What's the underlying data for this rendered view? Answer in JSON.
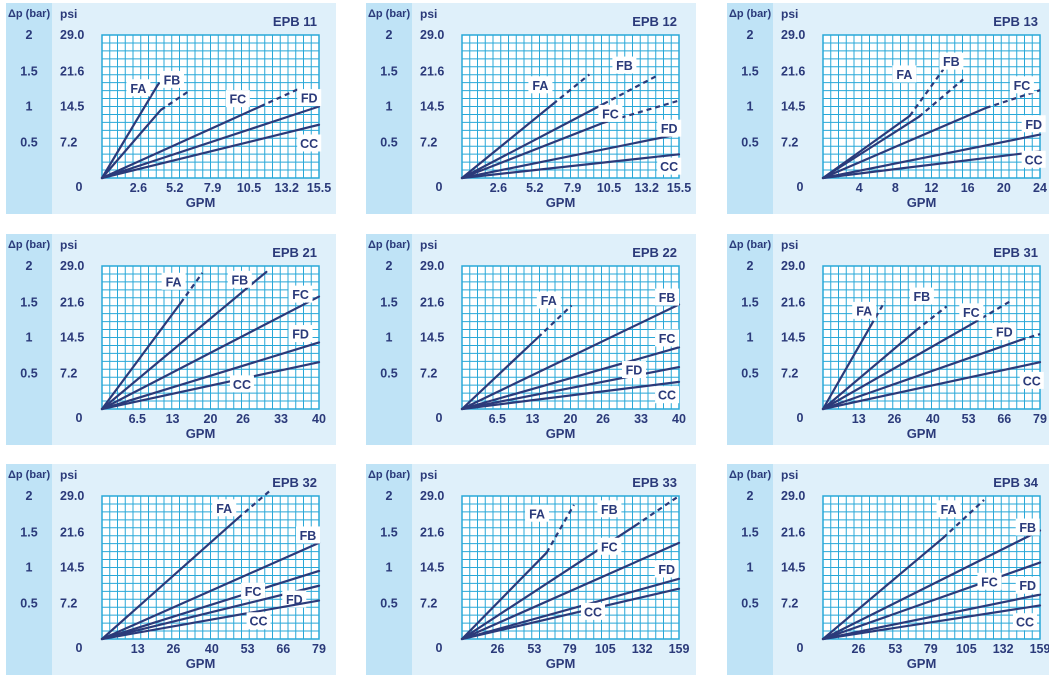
{
  "style": {
    "strip": "#bfe3f6",
    "panel_bg": "#dff0fa",
    "plot_bg": "#ffffff",
    "grid": "#29a8d8",
    "line": "#2b3a7a",
    "text": "#2b3a7a"
  },
  "chart_data": [
    {
      "type": "line",
      "title": "EPB 11",
      "xlabel": "GPM",
      "ylabel": "psi",
      "y2label": "Δp (bar)",
      "xlim": [
        0,
        15.5
      ],
      "ylim": [
        0,
        29.0
      ],
      "x_ticks": [
        "2.6",
        "5.2",
        "7.9",
        "10.5",
        "13.2",
        "15.5"
      ],
      "x_tick_values": [
        2.6,
        5.2,
        7.9,
        10.5,
        13.2,
        15.5
      ],
      "y_ticks": [
        "29.0",
        "21.6",
        "14.5",
        "7.2"
      ],
      "y_tick_values": [
        29.0,
        21.6,
        14.5,
        7.2
      ],
      "bar_ticks": [
        "2",
        "1.5",
        "1",
        "0.5",
        "0"
      ],
      "bar_tick_values": [
        29.0,
        21.6,
        14.5,
        7.2,
        0
      ],
      "series": [
        {
          "name": "FA",
          "solid_to": [
            3.9,
            18.5
          ],
          "dashed_to": [
            4.5,
            21.0
          ],
          "label_at": [
            2.6,
            18.2
          ]
        },
        {
          "name": "FB",
          "solid_to": [
            4.2,
            13.8
          ],
          "dashed_to": [
            6.3,
            17.8
          ],
          "label_at": [
            5.0,
            19.9
          ]
        },
        {
          "name": "FC",
          "solid_to": [
            11.3,
            14.5
          ],
          "dashed_to": [
            14.0,
            18.0
          ],
          "label_at": [
            9.7,
            16.0
          ]
        },
        {
          "name": "FD",
          "solid_to": [
            15.5,
            14.5
          ],
          "label_at": [
            14.8,
            16.2
          ]
        },
        {
          "name": "CC",
          "solid_to": [
            15.5,
            10.8
          ],
          "label_at": [
            14.8,
            7.0
          ]
        }
      ]
    },
    {
      "type": "line",
      "title": "EPB 12",
      "xlabel": "GPM",
      "ylabel": "psi",
      "y2label": "Δp (bar)",
      "xlim": [
        0,
        15.5
      ],
      "ylim": [
        0,
        29.0
      ],
      "x_ticks": [
        "2.6",
        "5.2",
        "7.9",
        "10.5",
        "13.2",
        "15.5"
      ],
      "x_tick_values": [
        2.6,
        5.2,
        7.9,
        10.5,
        13.2,
        15.5
      ],
      "y_ticks": [
        "29.0",
        "21.6",
        "14.5",
        "7.2"
      ],
      "y_tick_values": [
        29.0,
        21.6,
        14.5,
        7.2
      ],
      "bar_ticks": [
        "2",
        "1.5",
        "1",
        "0.5",
        "0"
      ],
      "bar_tick_values": [
        29.0,
        21.6,
        14.5,
        7.2,
        0
      ],
      "series": [
        {
          "name": "FA",
          "solid_to": [
            6.5,
            15.0
          ],
          "dashed_to": [
            9.1,
            21.0
          ],
          "label_at": [
            5.6,
            18.8
          ]
        },
        {
          "name": "FB",
          "solid_to": [
            10.1,
            15.0
          ],
          "dashed_to": [
            13.9,
            20.7
          ],
          "label_at": [
            11.6,
            22.8
          ]
        },
        {
          "name": "FC",
          "solid_to": [
            10.1,
            11.2
          ],
          "dashed_to": [
            15.5,
            15.7
          ],
          "label_at": [
            10.6,
            13.0
          ]
        },
        {
          "name": "FD",
          "solid_to": [
            15.5,
            8.9
          ],
          "label_at": [
            14.8,
            10.0
          ]
        },
        {
          "name": "CC",
          "solid_to": [
            15.5,
            4.8
          ],
          "label_at": [
            14.8,
            2.3
          ]
        }
      ]
    },
    {
      "type": "line",
      "title": "EPB 13",
      "xlabel": "GPM",
      "ylabel": "psi",
      "y2label": "Δp (bar)",
      "xlim": [
        0,
        24
      ],
      "ylim": [
        0,
        29.0
      ],
      "x_ticks": [
        "4",
        "8",
        "12",
        "16",
        "20",
        "24"
      ],
      "x_tick_values": [
        4,
        8,
        12,
        16,
        20,
        24
      ],
      "y_ticks": [
        "29.0",
        "21.6",
        "14.5",
        "7.2"
      ],
      "y_tick_values": [
        29.0,
        21.6,
        14.5,
        7.2
      ],
      "bar_ticks": [
        "2",
        "1.5",
        "1",
        "0.5",
        "0"
      ],
      "bar_tick_values": [
        29.0,
        21.6,
        14.5,
        7.2,
        0
      ],
      "series": [
        {
          "name": "FA",
          "solid_to": [
            9.6,
            12.6
          ],
          "dashed_to": [
            13.3,
            22.0
          ],
          "label_at": [
            9.0,
            21.0
          ]
        },
        {
          "name": "FB",
          "solid_to": [
            10.6,
            12.4
          ],
          "dashed_to": [
            15.5,
            20.0
          ],
          "label_at": [
            14.2,
            23.6
          ]
        },
        {
          "name": "FC",
          "solid_to": [
            18.0,
            14.2
          ],
          "dashed_to": [
            24.0,
            17.8
          ],
          "label_at": [
            22.0,
            18.8
          ]
        },
        {
          "name": "FD",
          "solid_to": [
            24.0,
            8.8
          ],
          "label_at": [
            23.3,
            10.9
          ]
        },
        {
          "name": "CC",
          "solid_to": [
            24.0,
            5.4
          ],
          "label_at": [
            23.3,
            3.7
          ]
        }
      ]
    },
    {
      "type": "line",
      "title": "EPB 21",
      "xlabel": "GPM",
      "ylabel": "psi",
      "y2label": "Δp (bar)",
      "xlim": [
        0,
        40
      ],
      "ylim": [
        0,
        29.0
      ],
      "x_ticks": [
        "6.5",
        "13",
        "20",
        "26",
        "33",
        "40"
      ],
      "x_tick_values": [
        6.5,
        13,
        20,
        26,
        33,
        40
      ],
      "y_ticks": [
        "29.0",
        "21.6",
        "14.5",
        "7.2"
      ],
      "y_tick_values": [
        29.0,
        21.6,
        14.5,
        7.2
      ],
      "bar_ticks": [
        "2",
        "1.5",
        "1",
        "0.5",
        "0"
      ],
      "bar_tick_values": [
        29.0,
        21.6,
        14.5,
        7.2,
        0
      ],
      "series": [
        {
          "name": "FA",
          "solid_to": [
            14.5,
            21.5
          ],
          "dashed_to": [
            18.5,
            27.6
          ],
          "label_at": [
            13.2,
            25.8
          ]
        },
        {
          "name": "FB",
          "solid_to": [
            30.3,
            27.8
          ],
          "label_at": [
            25.4,
            26.2
          ]
        },
        {
          "name": "FC",
          "solid_to": [
            40.0,
            22.8
          ],
          "label_at": [
            36.6,
            23.2
          ]
        },
        {
          "name": "FD",
          "solid_to": [
            40.0,
            13.5
          ],
          "label_at": [
            36.6,
            15.2
          ]
        },
        {
          "name": "CC",
          "solid_to": [
            40.0,
            9.5
          ],
          "label_at": [
            25.8,
            5.0
          ]
        }
      ]
    },
    {
      "type": "line",
      "title": "EPB 22",
      "xlabel": "GPM",
      "ylabel": "psi",
      "y2label": "Δp (bar)",
      "xlim": [
        0,
        40
      ],
      "ylim": [
        0,
        29.0
      ],
      "x_ticks": [
        "6.5",
        "13",
        "20",
        "26",
        "33",
        "40"
      ],
      "x_tick_values": [
        6.5,
        13,
        20,
        26,
        33,
        40
      ],
      "y_ticks": [
        "29.0",
        "21.6",
        "14.5",
        "7.2"
      ],
      "y_tick_values": [
        29.0,
        21.6,
        14.5,
        7.2
      ],
      "bar_ticks": [
        "2",
        "1.5",
        "1",
        "0.5",
        "0"
      ],
      "bar_tick_values": [
        29.0,
        21.6,
        14.5,
        7.2,
        0
      ],
      "series": [
        {
          "name": "FA",
          "solid_to": [
            14.0,
            14.5
          ],
          "dashed_to": [
            20.2,
            21.0
          ],
          "label_at": [
            16.0,
            22.0
          ]
        },
        {
          "name": "FB",
          "solid_to": [
            40.0,
            21.2
          ],
          "label_at": [
            37.8,
            22.6
          ]
        },
        {
          "name": "FC",
          "solid_to": [
            40.0,
            12.5
          ],
          "label_at": [
            37.8,
            14.3
          ]
        },
        {
          "name": "FD",
          "solid_to": [
            40.0,
            8.5
          ],
          "label_at": [
            31.7,
            7.9
          ]
        },
        {
          "name": "CC",
          "solid_to": [
            40.0,
            5.5
          ],
          "label_at": [
            37.8,
            2.8
          ]
        }
      ]
    },
    {
      "type": "line",
      "title": "EPB 31",
      "xlabel": "GPM",
      "ylabel": "psi",
      "y2label": "Δp (bar)",
      "xlim": [
        0,
        79
      ],
      "ylim": [
        0,
        29.0
      ],
      "x_ticks": [
        "13",
        "26",
        "40",
        "53",
        "66",
        "79"
      ],
      "x_tick_values": [
        13,
        26,
        40,
        53,
        66,
        79
      ],
      "y_ticks": [
        "29.0",
        "21.6",
        "14.5",
        "7.2"
      ],
      "y_tick_values": [
        29.0,
        21.6,
        14.5,
        7.2
      ],
      "bar_ticks": [
        "2",
        "1.5",
        "1",
        "0.5",
        "0"
      ],
      "bar_tick_values": [
        29.0,
        21.6,
        14.5,
        7.2,
        0
      ],
      "series": [
        {
          "name": "FA",
          "solid_to": [
            17.5,
            17.0
          ],
          "dashed_to": [
            22.5,
            21.8
          ],
          "label_at": [
            15.0,
            19.9
          ]
        },
        {
          "name": "FB",
          "solid_to": [
            34.0,
            16.0
          ],
          "dashed_to": [
            45.0,
            20.8
          ],
          "label_at": [
            36.0,
            22.8
          ]
        },
        {
          "name": "FC",
          "solid_to": [
            55.0,
            17.5
          ],
          "dashed_to": [
            68.0,
            21.8
          ],
          "label_at": [
            54.0,
            19.6
          ]
        },
        {
          "name": "FD",
          "solid_to": [
            72.0,
            14.0
          ],
          "dashed_to": [
            79.0,
            15.2
          ],
          "label_at": [
            66.0,
            15.6
          ]
        },
        {
          "name": "CC",
          "solid_to": [
            79.0,
            9.5
          ],
          "label_at": [
            76.0,
            5.7
          ]
        }
      ]
    },
    {
      "type": "line",
      "title": "EPB 32",
      "xlabel": "GPM",
      "ylabel": "psi",
      "y2label": "Δp (bar)",
      "xlim": [
        0,
        79
      ],
      "ylim": [
        0,
        29.0
      ],
      "x_ticks": [
        "13",
        "26",
        "40",
        "53",
        "66",
        "79"
      ],
      "x_tick_values": [
        13,
        26,
        40,
        53,
        66,
        79
      ],
      "y_ticks": [
        "29.0",
        "21.6",
        "14.5",
        "7.2"
      ],
      "y_tick_values": [
        29.0,
        21.6,
        14.5,
        7.2
      ],
      "bar_ticks": [
        "2",
        "1.5",
        "1",
        "0.5",
        "0"
      ],
      "bar_tick_values": [
        29.0,
        21.6,
        14.5,
        7.2,
        0
      ],
      "series": [
        {
          "name": "FA",
          "solid_to": [
            49.5,
            24.5
          ],
          "dashed_to": [
            61.0,
            30.0
          ],
          "label_at": [
            44.5,
            26.5
          ]
        },
        {
          "name": "FB",
          "solid_to": [
            79.0,
            19.5
          ],
          "label_at": [
            75.0,
            21.0
          ]
        },
        {
          "name": "FC",
          "solid_to": [
            79.0,
            13.8
          ],
          "label_at": [
            55.0,
            9.6
          ]
        },
        {
          "name": "FD",
          "solid_to": [
            79.0,
            10.8
          ],
          "label_at": [
            70.0,
            8.0
          ]
        },
        {
          "name": "CC",
          "solid_to": [
            79.0,
            7.8
          ],
          "label_at": [
            57.0,
            3.6
          ]
        }
      ]
    },
    {
      "type": "line",
      "title": "EPB 33",
      "xlabel": "GPM",
      "ylabel": "psi",
      "y2label": "Δp (bar)",
      "xlim": [
        0,
        159
      ],
      "ylim": [
        0,
        29.0
      ],
      "x_ticks": [
        "26",
        "53",
        "79",
        "105",
        "132",
        "159"
      ],
      "x_tick_values": [
        26,
        53,
        79,
        105,
        132,
        159
      ],
      "y_ticks": [
        "29.0",
        "21.6",
        "14.5",
        "7.2"
      ],
      "y_tick_values": [
        29.0,
        21.6,
        14.5,
        7.2
      ],
      "bar_ticks": [
        "2",
        "1.5",
        "1",
        "0.5",
        "0"
      ],
      "bar_tick_values": [
        29.0,
        21.6,
        14.5,
        7.2,
        0
      ],
      "series": [
        {
          "name": "FA",
          "solid_to": [
            62.0,
            17.5
          ],
          "dashed_to": [
            82.0,
            27.2
          ],
          "label_at": [
            55.0,
            25.4
          ]
        },
        {
          "name": "FB",
          "solid_to": [
            127.0,
            23.0
          ],
          "dashed_to": [
            159.0,
            29.0
          ],
          "label_at": [
            108.0,
            26.3
          ]
        },
        {
          "name": "FC",
          "solid_to": [
            159.0,
            19.5
          ],
          "label_at": [
            108.0,
            18.7
          ]
        },
        {
          "name": "FD",
          "solid_to": [
            159.0,
            12.2
          ],
          "label_at": [
            150.0,
            14.1
          ]
        },
        {
          "name": "CC",
          "solid_to": [
            159.0,
            10.2
          ],
          "label_at": [
            96.0,
            5.5
          ]
        }
      ]
    },
    {
      "type": "line",
      "title": "EPB 34",
      "xlabel": "GPM",
      "ylabel": "psi",
      "y2label": "Δp (bar)",
      "xlim": [
        0,
        159
      ],
      "ylim": [
        0,
        29.0
      ],
      "x_ticks": [
        "26",
        "53",
        "79",
        "105",
        "132",
        "159"
      ],
      "x_tick_values": [
        26,
        53,
        79,
        105,
        132,
        159
      ],
      "y_ticks": [
        "29.0",
        "21.6",
        "14.5",
        "7.2"
      ],
      "y_tick_values": [
        29.0,
        21.6,
        14.5,
        7.2
      ],
      "bar_ticks": [
        "2",
        "1.5",
        "1",
        "0.5",
        "0"
      ],
      "bar_tick_values": [
        29.0,
        21.6,
        14.5,
        7.2,
        0
      ],
      "series": [
        {
          "name": "FA",
          "solid_to": [
            88.0,
            20.5
          ],
          "dashed_to": [
            118.0,
            28.2
          ],
          "label_at": [
            92.0,
            26.3
          ]
        },
        {
          "name": "FB",
          "solid_to": [
            159.0,
            22.0
          ],
          "label_at": [
            150.0,
            22.6
          ]
        },
        {
          "name": "FC",
          "solid_to": [
            159.0,
            15.5
          ],
          "label_at": [
            122.0,
            11.6
          ]
        },
        {
          "name": "FD",
          "solid_to": [
            159.0,
            9.0
          ],
          "label_at": [
            150.0,
            10.8
          ]
        },
        {
          "name": "CC",
          "solid_to": [
            159.0,
            6.8
          ],
          "label_at": [
            148.0,
            3.4
          ]
        }
      ]
    }
  ]
}
